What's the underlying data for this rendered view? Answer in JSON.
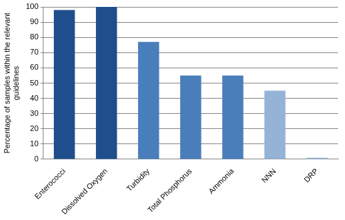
{
  "chart_data": {
    "type": "bar",
    "y_label": "Percentage of samples within the relevant guidelines",
    "categories": [
      "Enterococci",
      "Dissolved Oxygen",
      "Turbidity",
      "Total Phosphorus",
      "Ammonia",
      "NNN",
      "DRP"
    ],
    "values": [
      98,
      100,
      77,
      55,
      55,
      45,
      1
    ],
    "colors": [
      "#1f4e8c",
      "#1f4e8c",
      "#4a7ebb",
      "#4a7ebb",
      "#4a7ebb",
      "#95b3d7",
      "#95b3d7"
    ],
    "ylim": [
      0,
      100
    ],
    "yticks": [
      0,
      10,
      20,
      30,
      40,
      50,
      60,
      70,
      80,
      90,
      100
    ],
    "grid": true
  }
}
